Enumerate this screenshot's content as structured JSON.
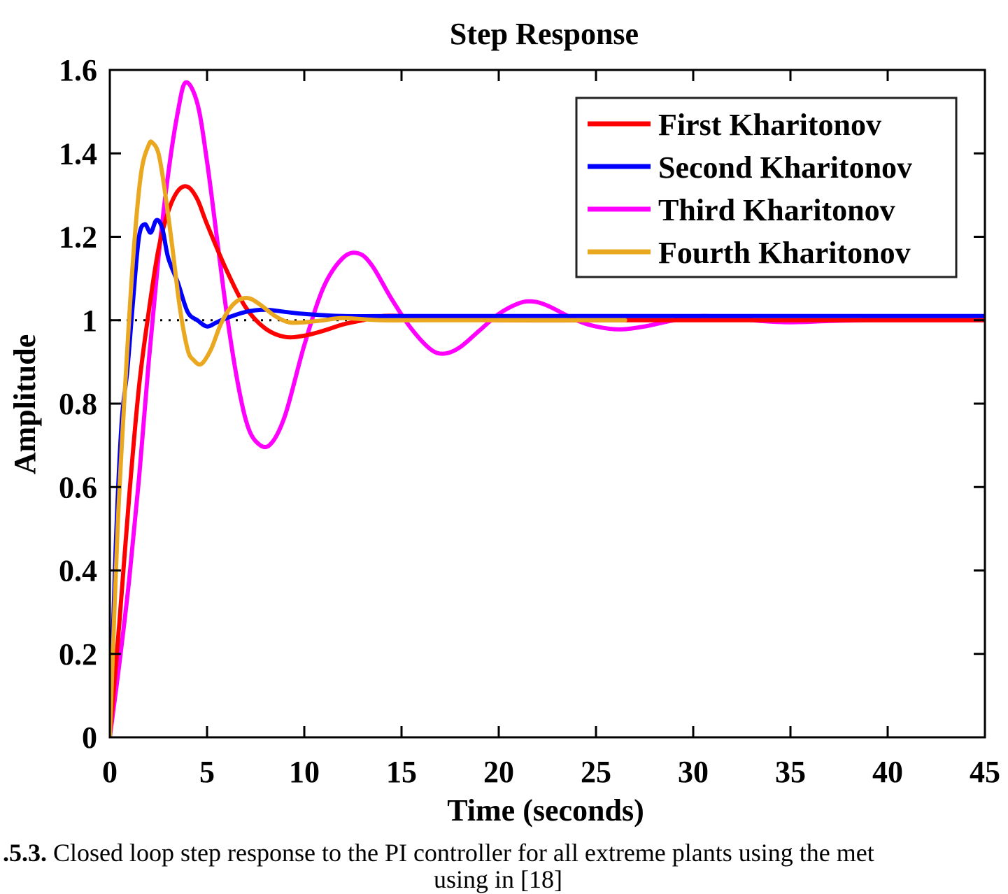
{
  "chart_data": {
    "type": "line",
    "title": "Step Response",
    "xlabel": "Time (seconds)",
    "ylabel": "Amplitude",
    "xlim": [
      0,
      45
    ],
    "ylim": [
      0,
      1.6
    ],
    "xticks": [
      0,
      5,
      10,
      15,
      20,
      25,
      30,
      35,
      40,
      45
    ],
    "yticks": [
      0,
      0.2,
      0.4,
      0.6,
      0.8,
      1,
      1.2,
      1.4,
      1.6
    ],
    "xtick_labels": [
      "0",
      "5",
      "10",
      "15",
      "20",
      "25",
      "30",
      "35",
      "40",
      "45"
    ],
    "ytick_labels": [
      "0",
      "0.2",
      "0.4",
      "0.6",
      "0.8",
      "1",
      "1.2",
      "1.4",
      "1.6"
    ],
    "grid": false,
    "legend_position": "top-right",
    "reference_line": {
      "y": 1,
      "style": "dotted",
      "color": "#000000"
    },
    "series": [
      {
        "name": "First Kharitonov",
        "color": "#ff0000",
        "x": [
          0,
          0.5,
          1,
          1.5,
          2,
          2.5,
          3,
          3.5,
          4,
          4.5,
          5,
          6,
          7,
          8,
          9,
          10,
          11,
          12,
          13,
          14,
          15,
          17,
          20,
          25,
          30,
          35,
          40,
          45
        ],
        "y": [
          0,
          0.28,
          0.58,
          0.84,
          1.02,
          1.17,
          1.26,
          1.31,
          1.32,
          1.29,
          1.23,
          1.12,
          1.03,
          0.98,
          0.96,
          0.963,
          0.975,
          0.99,
          1.0,
          1.01,
          1.01,
          1.005,
          1.0,
          1.0,
          1.0,
          1.0,
          1.0,
          1.0
        ]
      },
      {
        "name": "Second Kharitonov",
        "color": "#0000ff",
        "x": [
          0,
          0.3,
          0.6,
          0.9,
          1.2,
          1.5,
          1.8,
          2.1,
          2.4,
          2.7,
          3,
          3.5,
          4,
          4.5,
          5,
          5.5,
          6,
          7,
          8,
          9,
          10,
          12,
          15,
          20,
          25,
          30,
          35,
          40,
          45
        ],
        "y": [
          0,
          0.45,
          0.75,
          0.88,
          1.05,
          1.2,
          1.23,
          1.21,
          1.24,
          1.22,
          1.15,
          1.09,
          1.02,
          1.0,
          0.985,
          0.995,
          1.005,
          1.02,
          1.025,
          1.02,
          1.015,
          1.01,
          1.01,
          1.01,
          1.01,
          1.01,
          1.01,
          1.01,
          1.01
        ]
      },
      {
        "name": "Third Kharitonov",
        "color": "#ff00ff",
        "x": [
          0,
          0.5,
          1,
          1.5,
          2,
          2.5,
          3,
          3.5,
          3.9,
          4.5,
          5,
          5.5,
          6,
          6.5,
          7,
          7.5,
          8.2,
          9,
          10,
          11,
          12,
          12.8,
          13.5,
          14.5,
          15.5,
          16.5,
          17.2,
          18,
          19,
          20,
          21,
          21.7,
          22.5,
          24,
          25,
          26.2,
          27.5,
          29,
          30.5,
          32,
          33.5,
          35,
          37,
          39,
          41,
          43,
          45
        ],
        "y": [
          0,
          0.18,
          0.38,
          0.62,
          0.9,
          1.15,
          1.35,
          1.5,
          1.57,
          1.52,
          1.38,
          1.2,
          1.02,
          0.87,
          0.76,
          0.71,
          0.7,
          0.77,
          0.94,
          1.08,
          1.15,
          1.16,
          1.13,
          1.05,
          0.98,
          0.93,
          0.92,
          0.935,
          0.975,
          1.015,
          1.04,
          1.045,
          1.035,
          1.0,
          0.985,
          0.978,
          0.985,
          1.0,
          1.01,
          1.005,
          0.998,
          0.995,
          0.998,
          1.0,
          1.0,
          1.0,
          1.0
        ]
      },
      {
        "name": "Fourth Kharitonov",
        "color": "#eaa820",
        "x": [
          0,
          0.4,
          0.8,
          1.2,
          1.6,
          2.0,
          2.2,
          2.5,
          2.8,
          3.2,
          3.6,
          4.0,
          4.3,
          4.7,
          5.2,
          5.7,
          6.2,
          6.7,
          7.2,
          7.8,
          8.5,
          9.2,
          10,
          11,
          12,
          14,
          16,
          20,
          24,
          26.5
        ],
        "y": [
          0,
          0.5,
          0.85,
          1.15,
          1.35,
          1.42,
          1.425,
          1.4,
          1.32,
          1.18,
          1.03,
          0.93,
          0.905,
          0.895,
          0.93,
          0.99,
          1.03,
          1.05,
          1.052,
          1.035,
          1.01,
          0.995,
          0.995,
          1.0,
          1.005,
          1.0,
          1.0,
          1.0,
          1.0,
          1.0
        ]
      }
    ]
  },
  "caption": {
    "label": ".5.3.",
    "text": " Closed loop step response to the PI controller for all extreme plants using the met",
    "line2": "using in [18]"
  }
}
